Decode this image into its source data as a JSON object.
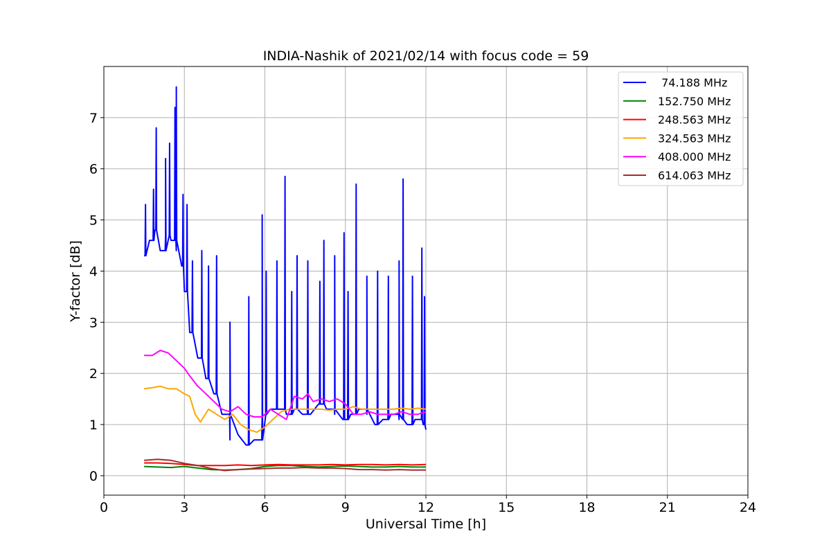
{
  "chart_data": {
    "type": "line",
    "title": "INDIA-Nashik of 2021/02/14 with focus code = 59",
    "xlabel": "Universal Time [h]",
    "ylabel": "Y-factor [dB]",
    "xlim": [
      0,
      24
    ],
    "ylim": [
      -0.38,
      8.0
    ],
    "xticks": [
      0,
      3,
      6,
      9,
      12,
      15,
      18,
      21,
      24
    ],
    "yticks": [
      0,
      1,
      2,
      3,
      4,
      5,
      6,
      7
    ],
    "grid": true,
    "legend_position": "top-right",
    "series": [
      {
        "name": " 74.188 MHz",
        "color": "#0000ff",
        "x": [
          1.5,
          1.7,
          1.9,
          2.1,
          2.3,
          2.5,
          2.7,
          2.9,
          3.0,
          3.2,
          3.5,
          3.8,
          4.1,
          4.4,
          4.7,
          5.0,
          5.3,
          5.6,
          5.9,
          6.2,
          6.5,
          6.8,
          7.1,
          7.4,
          7.7,
          8.0,
          8.3,
          8.6,
          8.9,
          9.2,
          9.5,
          9.8,
          10.1,
          10.4,
          10.7,
          11.0,
          11.3,
          11.6,
          11.9,
          12.0
        ],
        "y": [
          4.3,
          4.6,
          4.8,
          4.4,
          4.7,
          4.6,
          4.4,
          4.1,
          3.6,
          2.8,
          2.3,
          1.9,
          1.6,
          1.2,
          0.7,
          0.8,
          0.6,
          0.7,
          1.2,
          1.3,
          1.3,
          1.2,
          1.3,
          1.2,
          1.2,
          1.4,
          1.3,
          1.2,
          1.1,
          1.2,
          1.3,
          1.2,
          1.0,
          1.1,
          1.2,
          1.1,
          1.0,
          1.1,
          1.0,
          0.9
        ],
        "spikes": [
          [
            1.55,
            5.3
          ],
          [
            1.85,
            5.6
          ],
          [
            1.95,
            6.8
          ],
          [
            2.3,
            6.2
          ],
          [
            2.45,
            6.5
          ],
          [
            2.65,
            7.2
          ],
          [
            2.7,
            7.6
          ],
          [
            2.95,
            5.5
          ],
          [
            3.1,
            5.3
          ],
          [
            3.3,
            4.2
          ],
          [
            3.65,
            4.4
          ],
          [
            3.9,
            4.1
          ],
          [
            4.2,
            4.3
          ],
          [
            4.7,
            3.0
          ],
          [
            5.4,
            3.5
          ],
          [
            5.9,
            5.1
          ],
          [
            6.05,
            4.0
          ],
          [
            6.45,
            4.2
          ],
          [
            6.75,
            5.85
          ],
          [
            7.0,
            3.6
          ],
          [
            7.2,
            4.3
          ],
          [
            7.6,
            4.2
          ],
          [
            8.05,
            3.8
          ],
          [
            8.2,
            4.6
          ],
          [
            8.6,
            4.3
          ],
          [
            8.95,
            4.75
          ],
          [
            9.1,
            3.6
          ],
          [
            9.4,
            5.7
          ],
          [
            9.8,
            3.9
          ],
          [
            10.2,
            4.0
          ],
          [
            10.6,
            3.9
          ],
          [
            11.0,
            4.2
          ],
          [
            11.15,
            5.8
          ],
          [
            11.5,
            3.9
          ],
          [
            11.85,
            4.45
          ],
          [
            11.95,
            3.5
          ]
        ]
      },
      {
        "name": "152.750 MHz",
        "color": "#008000",
        "x": [
          1.5,
          2.0,
          2.5,
          3.0,
          3.5,
          4.0,
          4.5,
          5.0,
          5.5,
          6.0,
          6.5,
          7.0,
          7.5,
          8.0,
          8.5,
          9.0,
          9.5,
          10.0,
          10.5,
          11.0,
          11.5,
          12.0
        ],
        "y": [
          0.18,
          0.17,
          0.16,
          0.18,
          0.15,
          0.12,
          0.11,
          0.12,
          0.14,
          0.18,
          0.2,
          0.2,
          0.18,
          0.17,
          0.18,
          0.19,
          0.18,
          0.17,
          0.17,
          0.18,
          0.17,
          0.17
        ]
      },
      {
        "name": "248.563 MHz",
        "color": "#ff0000",
        "x": [
          1.5,
          2.0,
          2.5,
          3.0,
          3.5,
          4.0,
          4.5,
          5.0,
          5.5,
          6.0,
          6.5,
          7.0,
          7.5,
          8.0,
          8.5,
          9.0,
          9.5,
          10.0,
          10.5,
          11.0,
          11.5,
          12.0
        ],
        "y": [
          0.25,
          0.25,
          0.24,
          0.22,
          0.2,
          0.2,
          0.2,
          0.21,
          0.2,
          0.21,
          0.22,
          0.21,
          0.21,
          0.21,
          0.22,
          0.21,
          0.22,
          0.22,
          0.21,
          0.22,
          0.21,
          0.22
        ]
      },
      {
        "name": "324.563 MHz",
        "color": "#ffa500",
        "x": [
          1.5,
          1.8,
          2.1,
          2.4,
          2.7,
          3.0,
          3.2,
          3.4,
          3.6,
          3.9,
          4.2,
          4.5,
          4.8,
          5.1,
          5.4,
          5.7,
          6.0,
          6.3,
          6.6,
          6.9,
          7.2,
          7.5,
          7.8,
          8.1,
          8.4,
          8.7,
          9.0,
          9.3,
          9.6,
          9.9,
          10.2,
          10.5,
          10.8,
          11.1,
          11.4,
          11.7,
          12.0
        ],
        "y": [
          1.7,
          1.72,
          1.75,
          1.7,
          1.7,
          1.6,
          1.55,
          1.2,
          1.05,
          1.3,
          1.2,
          1.1,
          1.2,
          1.0,
          0.9,
          0.85,
          0.95,
          1.1,
          1.25,
          1.3,
          1.3,
          1.3,
          1.3,
          1.3,
          1.28,
          1.3,
          1.3,
          1.35,
          1.3,
          1.3,
          1.3,
          1.3,
          1.3,
          1.32,
          1.3,
          1.32,
          1.3
        ]
      },
      {
        "name": "408.000 MHz",
        "color": "#ff00ff",
        "x": [
          1.5,
          1.8,
          2.1,
          2.4,
          2.7,
          3.0,
          3.2,
          3.5,
          3.8,
          4.1,
          4.4,
          4.7,
          5.0,
          5.3,
          5.6,
          5.9,
          6.2,
          6.5,
          6.8,
          7.1,
          7.4,
          7.6,
          7.8,
          8.1,
          8.4,
          8.7,
          9.0,
          9.3,
          9.6,
          9.9,
          10.2,
          10.5,
          10.8,
          11.1,
          11.4,
          11.7,
          12.0
        ],
        "y": [
          2.35,
          2.35,
          2.45,
          2.4,
          2.25,
          2.1,
          1.95,
          1.75,
          1.6,
          1.45,
          1.3,
          1.25,
          1.35,
          1.2,
          1.15,
          1.15,
          1.3,
          1.2,
          1.1,
          1.55,
          1.5,
          1.6,
          1.45,
          1.5,
          1.45,
          1.5,
          1.4,
          1.2,
          1.2,
          1.25,
          1.2,
          1.2,
          1.2,
          1.25,
          1.2,
          1.2,
          1.25
        ]
      },
      {
        "name": "614.063 MHz",
        "color": "#a52a2a",
        "x": [
          1.5,
          2.0,
          2.5,
          3.0,
          3.5,
          4.0,
          4.5,
          5.0,
          5.5,
          6.0,
          6.5,
          7.0,
          7.5,
          8.0,
          8.5,
          9.0,
          9.5,
          10.0,
          10.5,
          11.0,
          11.5,
          12.0
        ],
        "y": [
          0.3,
          0.32,
          0.3,
          0.24,
          0.2,
          0.14,
          0.1,
          0.12,
          0.13,
          0.14,
          0.15,
          0.15,
          0.16,
          0.15,
          0.15,
          0.14,
          0.12,
          0.12,
          0.11,
          0.12,
          0.11,
          0.11
        ]
      }
    ]
  }
}
